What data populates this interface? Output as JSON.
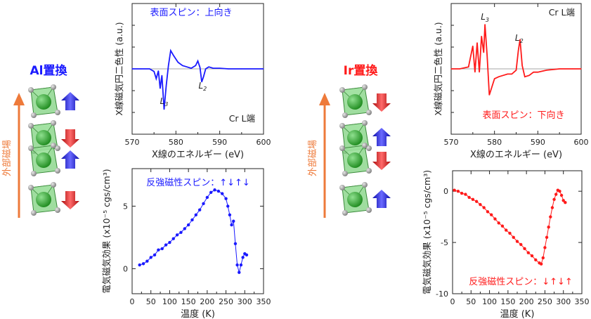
{
  "colors": {
    "blue": "#1a1aff",
    "red": "#ff1a1a",
    "orange": "#ee7a3a",
    "green": "#5ec25e"
  },
  "left_panel": {
    "title": "Al置換",
    "field_label": "外部磁場",
    "layers": [
      {
        "octahedra": 1,
        "spin": "up"
      },
      {
        "octahedra": 1,
        "spin": "down"
      },
      {
        "octahedra": 1,
        "spin": "up"
      },
      {
        "octahedra": 1,
        "spin": "down"
      }
    ]
  },
  "right_panel": {
    "title": "Ir置換",
    "field_label": "外部磁場",
    "layers": [
      {
        "octahedra": 1,
        "spin": "down"
      },
      {
        "octahedra": 1,
        "spin": "up"
      },
      {
        "octahedra": 1,
        "spin": "down"
      },
      {
        "octahedra": 1,
        "spin": "up"
      }
    ]
  },
  "chart_data": [
    {
      "id": "al-xmcd",
      "type": "line",
      "title": "表面スピン：上向き",
      "annotation": "Cr L端",
      "peak_labels": [
        {
          "text": "L",
          "sub": "3",
          "x": 577.3
        },
        {
          "text": "L",
          "sub": "2",
          "x": 586.1
        }
      ],
      "xlabel": "X線のエネルギー (eV)",
      "ylabel": "X線磁気円二色性 (a.u.)",
      "xlim": [
        570,
        600
      ],
      "ylim": [
        -1,
        1
      ],
      "xticks": [
        570,
        580,
        590,
        600
      ],
      "color": "#1a1aff",
      "series": [
        {
          "x": [
            570,
            572,
            574,
            575,
            575.5,
            576,
            576.4,
            576.8,
            577.3,
            577.8,
            578.3,
            578.8,
            579.5,
            580.5,
            581.5,
            582.5,
            583.5,
            584.5,
            585,
            585.5,
            585.9,
            586.3,
            586.8,
            587.5,
            588.5,
            590,
            592,
            595,
            600
          ],
          "y": [
            0,
            0,
            0,
            -0.04,
            -0.15,
            -0.03,
            -0.3,
            -0.1,
            -0.62,
            -0.25,
            0.05,
            0.28,
            0.2,
            0.1,
            0.05,
            0.03,
            0.01,
            0.05,
            0.12,
            0.02,
            -0.2,
            -0.12,
            0.0,
            0.03,
            0.01,
            0.01,
            0.0,
            0.0,
            0.0
          ]
        }
      ]
    },
    {
      "id": "al-me",
      "type": "scatter",
      "title": "反強磁性スピン：↑↓↑↓",
      "xlabel": "温度 (K)",
      "ylabel": "電気磁気効果 (x10⁻⁵ cgs/cm³)",
      "xlim": [
        0,
        350
      ],
      "ylim": [
        -2,
        8
      ],
      "xticks": [
        0,
        50,
        100,
        150,
        200,
        250,
        300,
        350
      ],
      "yticks": [
        0,
        5
      ],
      "color": "#1a1aff",
      "series": [
        {
          "x": [
            20,
            30,
            40,
            50,
            60,
            70,
            80,
            90,
            100,
            110,
            120,
            130,
            140,
            150,
            160,
            170,
            180,
            190,
            200,
            210,
            220,
            230,
            240,
            250,
            255,
            260,
            265,
            270,
            275,
            280,
            285,
            290,
            295,
            300,
            305
          ],
          "y": [
            0.3,
            0.4,
            0.6,
            0.9,
            1.1,
            1.5,
            1.6,
            1.9,
            2.1,
            2.4,
            2.7,
            2.9,
            3.2,
            3.5,
            3.9,
            4.3,
            4.7,
            5.2,
            5.7,
            6.1,
            6.3,
            6.2,
            6.0,
            5.6,
            5.0,
            4.3,
            3.5,
            3.8,
            2.0,
            0.3,
            -0.3,
            0.3,
            0.9,
            1.2,
            1.1
          ]
        }
      ]
    },
    {
      "id": "ir-xmcd",
      "type": "line",
      "title": "表面スピン：下向き",
      "annotation": "Cr L端",
      "peak_labels": [
        {
          "text": "L",
          "sub": "3",
          "x": 577.8
        },
        {
          "text": "L",
          "sub": "2",
          "x": 585.7
        }
      ],
      "xlabel": "X線のエネルギー (eV)",
      "ylabel": "X線磁気円二色性 (a.u.)",
      "xlim": [
        570,
        600
      ],
      "ylim": [
        -1,
        1
      ],
      "xticks": [
        570,
        580,
        590,
        600
      ],
      "color": "#ff1a1a",
      "series": [
        {
          "x": [
            570,
            572,
            574,
            575,
            575.5,
            576,
            576.5,
            577,
            577.5,
            577.8,
            578.3,
            578.8,
            579.3,
            580,
            581,
            582,
            583,
            584,
            585,
            585.5,
            585.9,
            586.4,
            587,
            588,
            589,
            590,
            592,
            595,
            598,
            600
          ],
          "y": [
            0,
            0,
            0.03,
            0.35,
            -0.05,
            0.4,
            -0.05,
            0.5,
            0.25,
            0.68,
            0.2,
            -0.4,
            -0.3,
            -0.15,
            -0.12,
            -0.1,
            -0.08,
            -0.08,
            -0.02,
            0.28,
            0.45,
            0.05,
            -0.12,
            -0.1,
            -0.05,
            -0.05,
            -0.02,
            0.0,
            0.0,
            0.0
          ]
        }
      ]
    },
    {
      "id": "ir-me",
      "type": "scatter",
      "title": "反強磁性スピン：↓↑↓↑",
      "xlabel": "温度 (K)",
      "ylabel": "電気磁気効果 (x10⁻⁵ cgs/cm³)",
      "xlim": [
        0,
        350
      ],
      "ylim": [
        -10,
        2
      ],
      "xticks": [
        0,
        50,
        100,
        150,
        200,
        250,
        300,
        350
      ],
      "yticks": [
        -10,
        -5,
        0
      ],
      "color": "#ff1a1a",
      "series": [
        {
          "x": [
            5,
            15,
            25,
            35,
            45,
            55,
            65,
            75,
            85,
            95,
            105,
            115,
            125,
            135,
            145,
            155,
            165,
            175,
            185,
            195,
            205,
            215,
            225,
            235,
            240,
            245,
            250,
            255,
            260,
            265,
            270,
            275,
            280,
            285,
            290,
            295,
            300,
            305
          ],
          "y": [
            0.1,
            0.0,
            -0.2,
            -0.3,
            -0.6,
            -0.8,
            -1.0,
            -1.3,
            -1.6,
            -2.0,
            -2.3,
            -2.7,
            -3.1,
            -3.4,
            -3.8,
            -4.1,
            -4.5,
            -4.9,
            -5.2,
            -5.6,
            -6.0,
            -6.3,
            -6.7,
            -7.0,
            -7.1,
            -6.5,
            -5.5,
            -4.5,
            -3.5,
            -2.5,
            -1.6,
            -0.8,
            -0.3,
            0.1,
            0.0,
            -0.4,
            -0.9,
            -1.1
          ]
        }
      ]
    }
  ]
}
